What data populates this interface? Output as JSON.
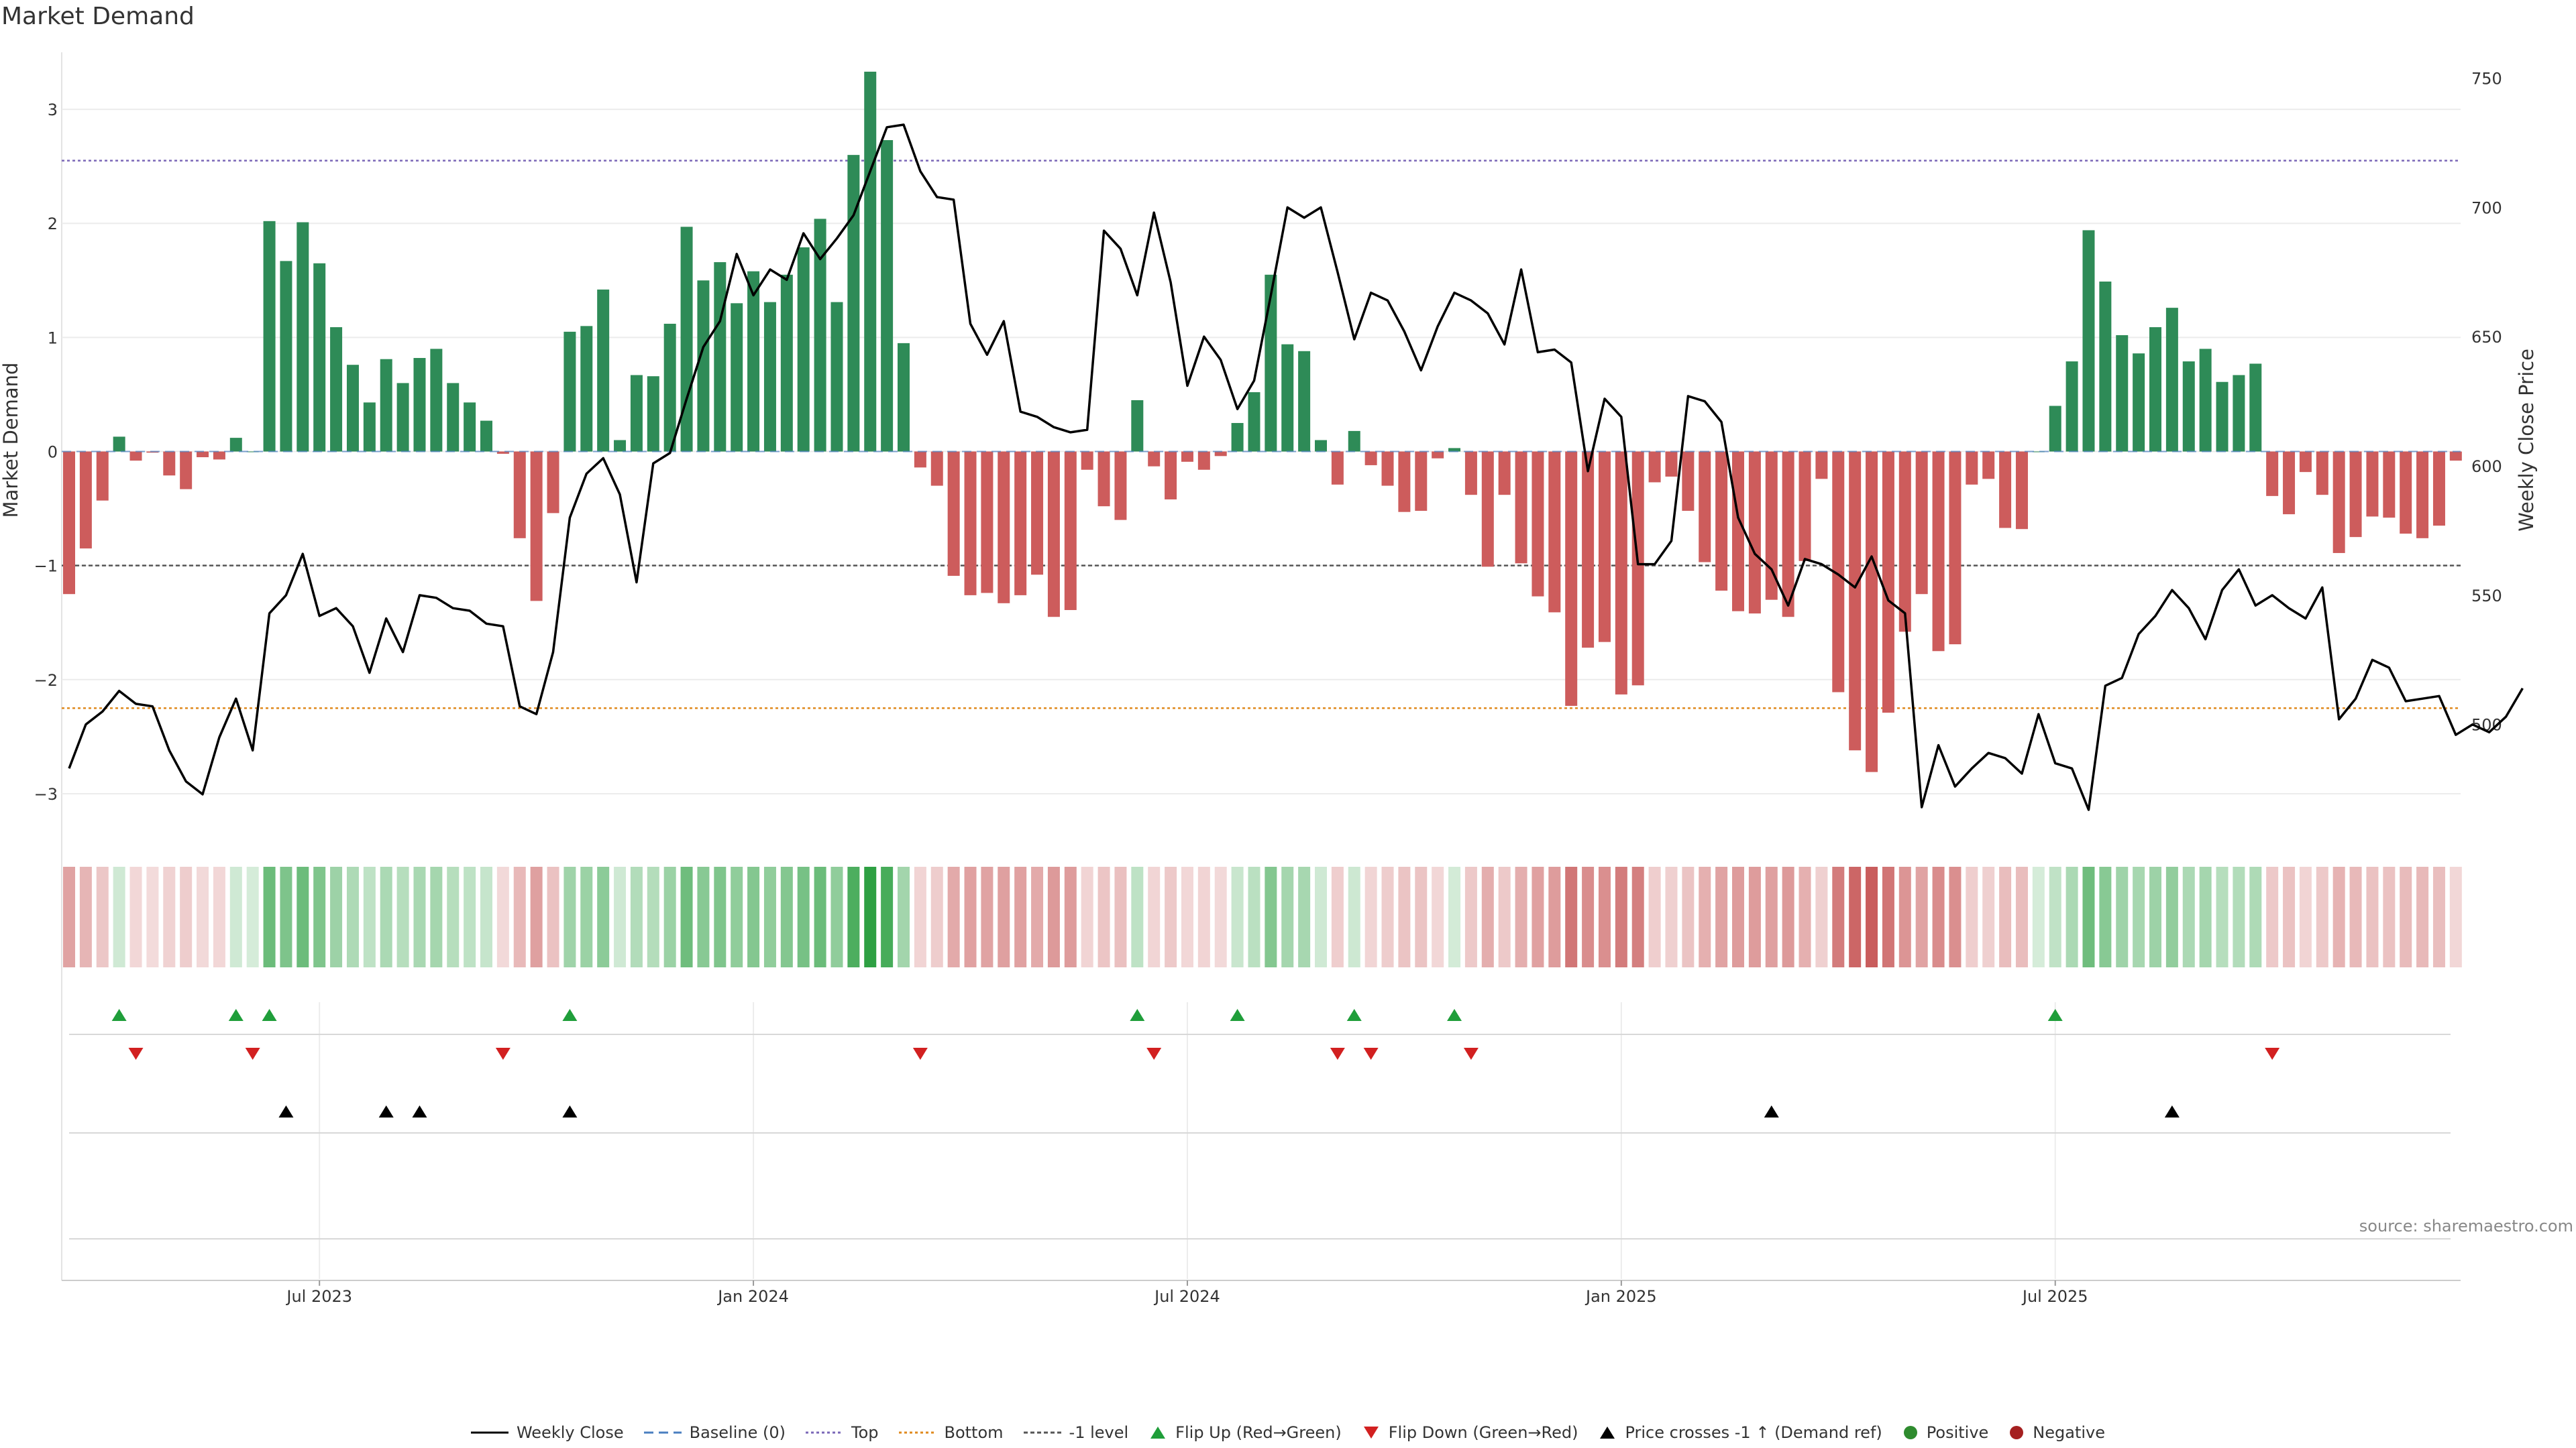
{
  "title": "Market Demand",
  "source": "source: sharemaestro.com",
  "colors": {
    "positive": "#2e8b57",
    "negative": "#cd5c5c",
    "price": "#000000",
    "top": "#7b68b8",
    "bottom": "#e08a1e",
    "minus1": "#555555",
    "flip_up": "#1f9e3a",
    "flip_down": "#d22020",
    "cross": "#000000",
    "dot_pos": "#2e8b2e",
    "dot_neg": "#a52020"
  },
  "chart_data": {
    "type": "bar",
    "title": "Market Demand",
    "ylabel": "Market Demand",
    "y2label": "Weekly Close Price",
    "ylim": [
      -3.3,
      3.5
    ],
    "y2lim": [
      460,
      760
    ],
    "yticks": [
      3,
      2,
      1,
      0,
      -1,
      -2,
      -3
    ],
    "ytick_labels": [
      "3",
      "2",
      "1",
      "0",
      "−1",
      "−2",
      "−3"
    ],
    "y2ticks": [
      750,
      700,
      650,
      600,
      550,
      500
    ],
    "top_level": 2.55,
    "bottom_level": -2.25,
    "minus1_level": -1,
    "start_week": "2023-03-19",
    "x_ticks": [
      {
        "week": 15,
        "label": "Jul 2023"
      },
      {
        "week": 41,
        "label": "Jan 2024"
      },
      {
        "week": 67,
        "label": "Jul 2024"
      },
      {
        "week": 93,
        "label": "Jan 2025"
      },
      {
        "week": 119,
        "label": "Jul 2025"
      }
    ],
    "series": [
      {
        "name": "Market Demand",
        "type": "bar",
        "values": [
          -1.25,
          -0.85,
          -0.43,
          0.13,
          -0.08,
          -0.01,
          -0.21,
          -0.33,
          -0.05,
          -0.07,
          0.12,
          0,
          2.02,
          1.67,
          2.01,
          1.65,
          1.09,
          0.76,
          0.43,
          0.81,
          0.6,
          0.82,
          0.9,
          0.6,
          0.43,
          0.27,
          -0.02,
          -0.76,
          -1.31,
          -0.54,
          1.05,
          1.1,
          1.42,
          0.1,
          0.67,
          0.66,
          1.12,
          1.97,
          1.5,
          1.66,
          1.3,
          1.58,
          1.31,
          1.55,
          1.79,
          2.04,
          1.31,
          2.6,
          3.33,
          2.73,
          0.95,
          -0.14,
          -0.3,
          -1.09,
          -1.26,
          -1.24,
          -1.33,
          -1.26,
          -1.08,
          -1.45,
          -1.39,
          -0.16,
          -0.48,
          -0.6,
          0.45,
          -0.13,
          -0.42,
          -0.09,
          -0.16,
          -0.04,
          0.25,
          0.52,
          1.55,
          0.94,
          0.88,
          0.1,
          -0.29,
          0.18,
          -0.12,
          -0.3,
          -0.53,
          -0.52,
          -0.06,
          0.03,
          -0.38,
          -1.01,
          -0.38,
          -0.98,
          -1.27,
          -1.41,
          -2.23,
          -1.72,
          -1.67,
          -2.13,
          -2.05,
          -0.27,
          -0.22,
          -0.52,
          -0.97,
          -1.22,
          -1.4,
          -1.42,
          -1.3,
          -1.45,
          -0.96,
          -0.24,
          -2.11,
          -2.62,
          -2.81,
          -2.29,
          -1.58,
          -1.25,
          -1.75,
          -1.69,
          -0.29,
          -0.24,
          -0.67,
          -0.68,
          0,
          0.4,
          0.79,
          1.94,
          1.49,
          1.02,
          0.86,
          1.09,
          1.26,
          0.79,
          0.9,
          0.61,
          0.67,
          0.77,
          -0.39,
          -0.55,
          -0.18,
          -0.38,
          -0.89,
          -0.75,
          -0.57,
          -0.58,
          -0.72,
          -0.76,
          -0.65,
          -0.08
        ]
      },
      {
        "name": "Weekly Close",
        "type": "line",
        "values": [
          483,
          500,
          505,
          513,
          508,
          507,
          490,
          478,
          473,
          495,
          510,
          490,
          543,
          550,
          566,
          542,
          545,
          538,
          520,
          541,
          528,
          550,
          549,
          545,
          544,
          539,
          538,
          507,
          504,
          528,
          580,
          597,
          603,
          589,
          555,
          601,
          605,
          626,
          646,
          656,
          682,
          666,
          676,
          672,
          690,
          680,
          688,
          697,
          714,
          731,
          732,
          714,
          704,
          703,
          655,
          643,
          656,
          621,
          619,
          615,
          613,
          614,
          691,
          684,
          666,
          698,
          671,
          631,
          650,
          641,
          622,
          633,
          666,
          700,
          696,
          700,
          675,
          649,
          667,
          664,
          652,
          637,
          654,
          667,
          664,
          659,
          647,
          676,
          644,
          645,
          640,
          598,
          626,
          619,
          562,
          562,
          571,
          627,
          625,
          617,
          580,
          566,
          560,
          546,
          564,
          562,
          558,
          553,
          565,
          548,
          543,
          468,
          492,
          476,
          483,
          489,
          487,
          481,
          504,
          485,
          483,
          467,
          515,
          518,
          535,
          542,
          552,
          545,
          533,
          552,
          560,
          546,
          550,
          545,
          541,
          553,
          502,
          510,
          525,
          522,
          509,
          510,
          511,
          496,
          500,
          497,
          503,
          514
        ]
      },
      {
        "name": "Flip Up (Red→Green)",
        "type": "marker",
        "weeks": [
          3,
          10,
          12,
          30,
          64,
          70,
          77,
          83,
          119
        ]
      },
      {
        "name": "Flip Down (Green→Red)",
        "type": "marker",
        "weeks": [
          4,
          11,
          26,
          51,
          65,
          76,
          78,
          84,
          132
        ]
      },
      {
        "name": "Price crosses -1 ↑ (Demand ref)",
        "type": "marker",
        "weeks": [
          13,
          19,
          21,
          30,
          102,
          126
        ]
      }
    ]
  },
  "legend": {
    "weekly_close": "Weekly Close",
    "baseline": "Baseline (0)",
    "top": "Top",
    "bottom": "Bottom",
    "minus1": "-1 level",
    "flip_up": "Flip Up (Red→Green)",
    "flip_down": "Flip Down (Green→Red)",
    "cross": "Price crosses -1 ↑ (Demand ref)",
    "positive": "Positive",
    "negative": "Negative"
  }
}
